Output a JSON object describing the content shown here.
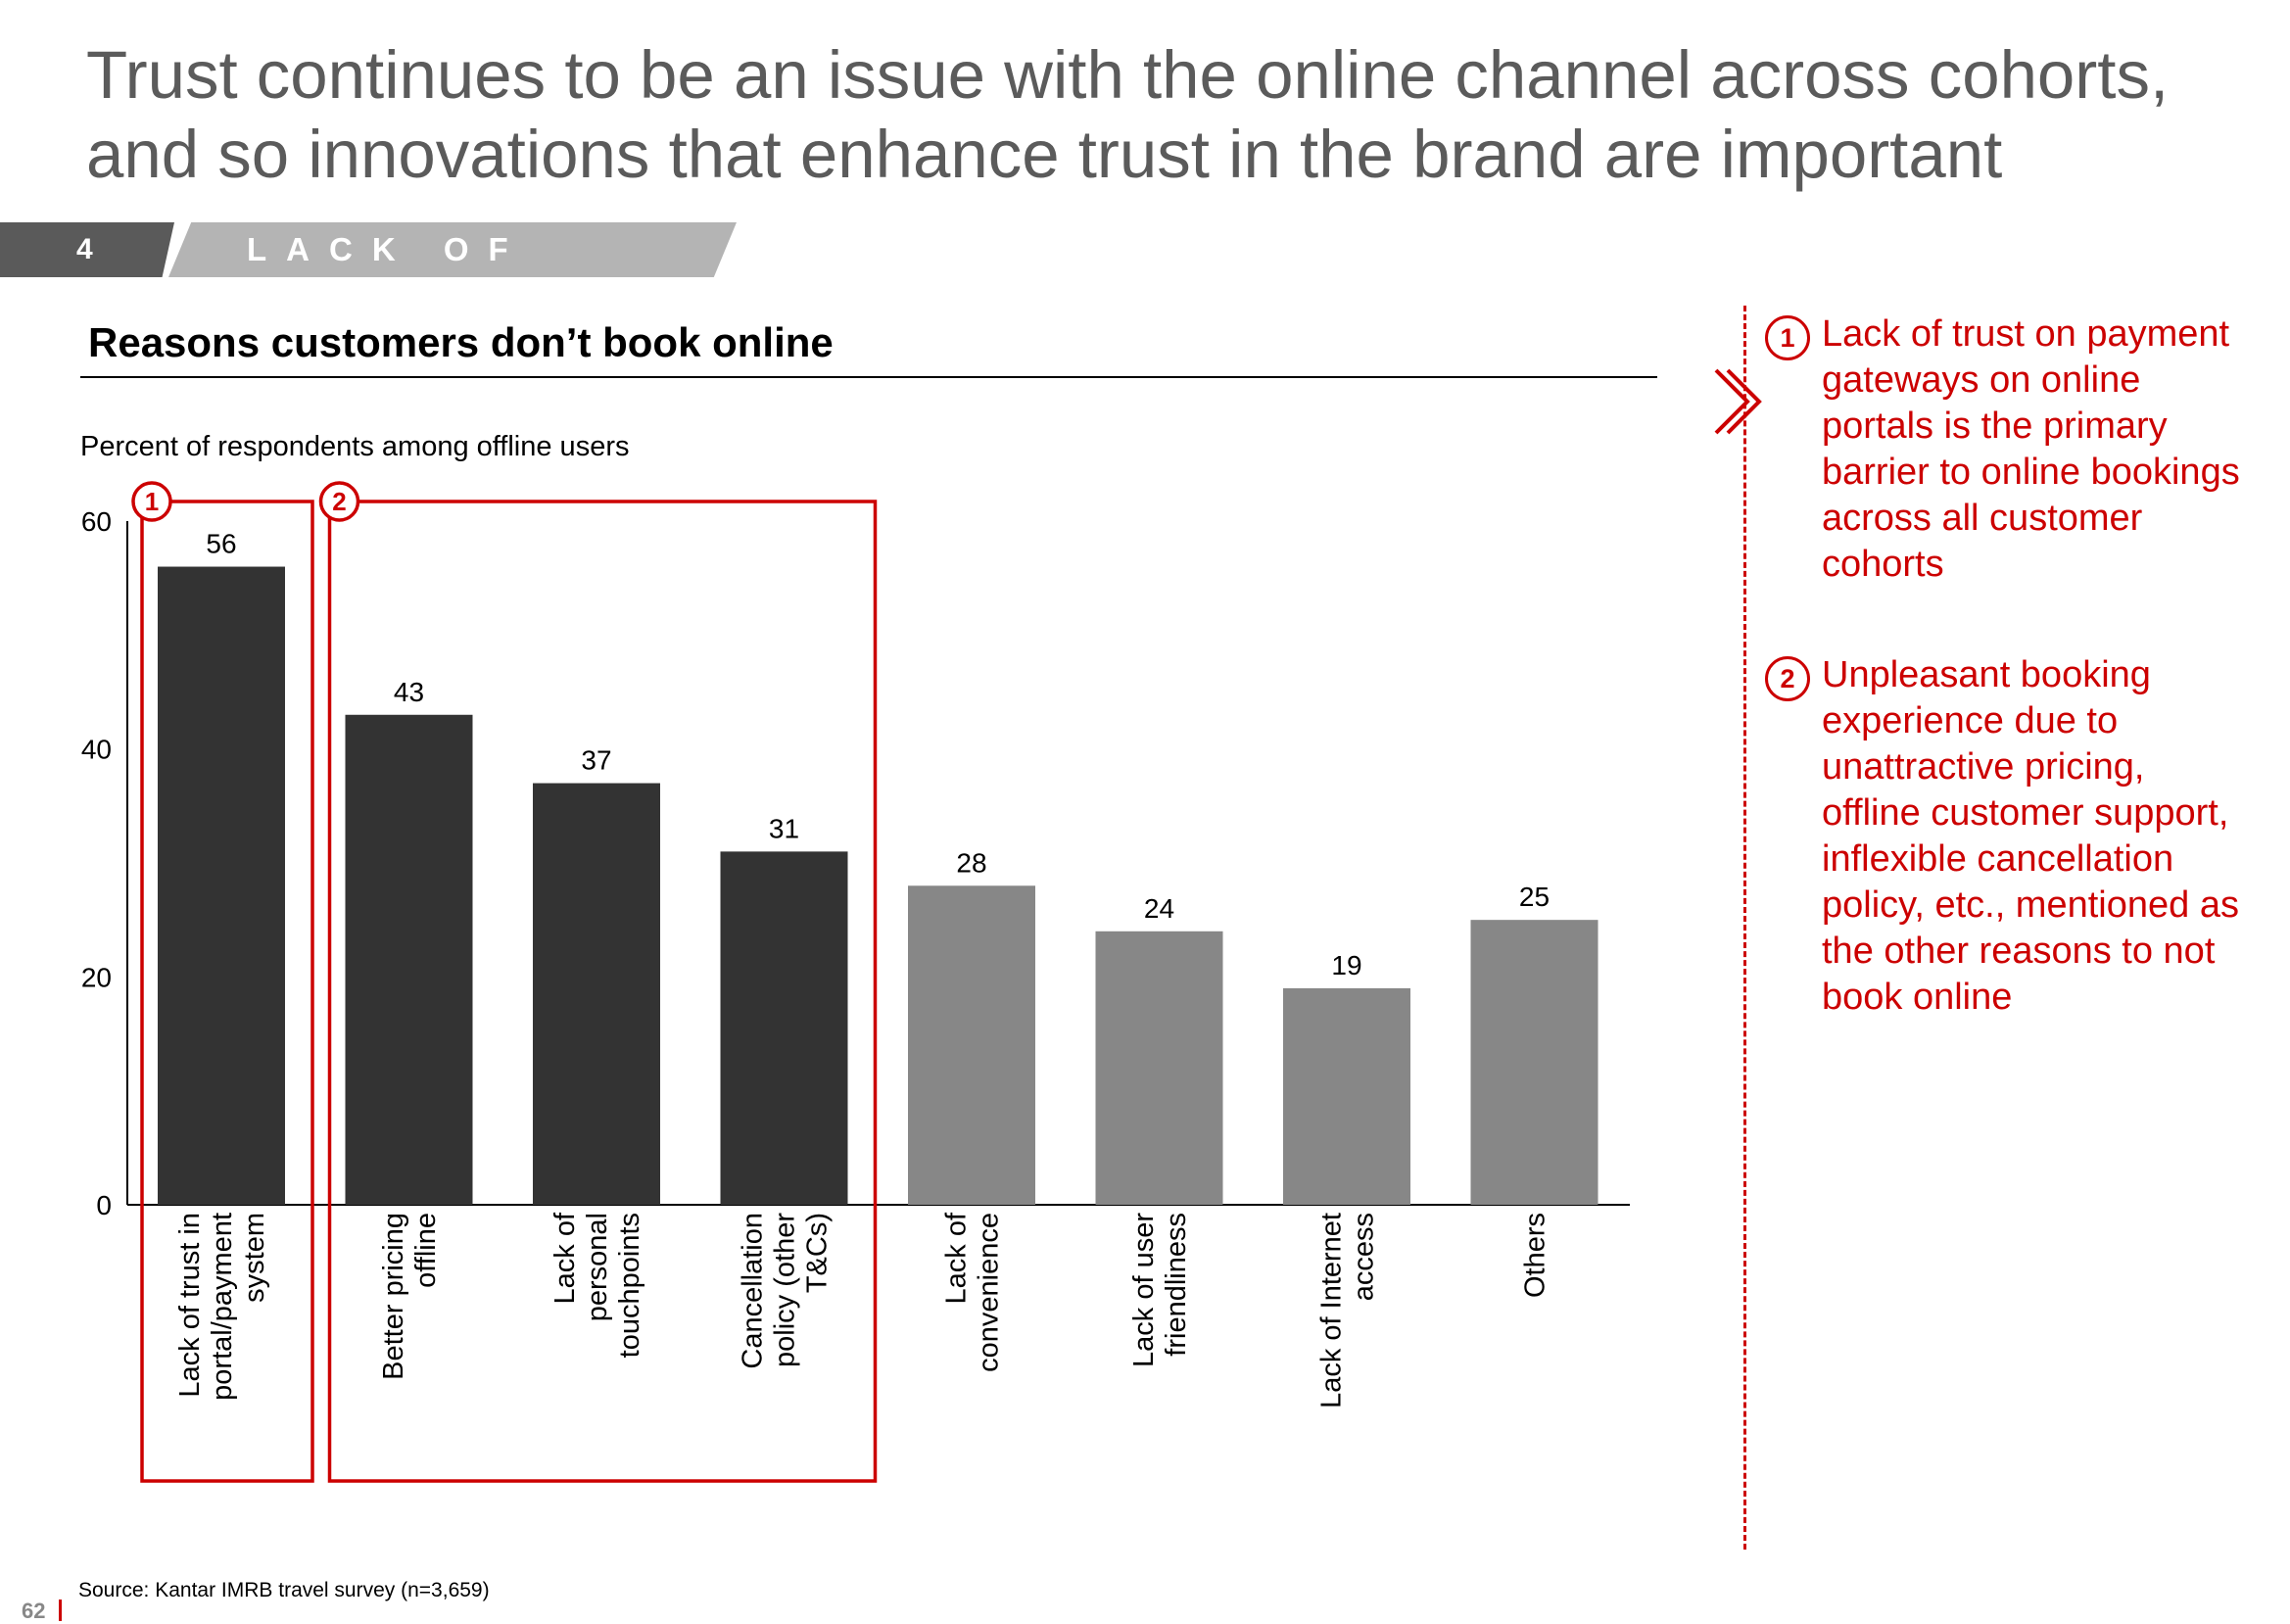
{
  "header": {
    "title": "Trust continues to be an issue with the online channel across cohorts, and so innovations that enhance trust in the brand are important",
    "section_number": "4",
    "section_label": "LACK OF TRUST"
  },
  "chart_data": {
    "type": "bar",
    "title": "Reasons customers don’t book online",
    "ylabel": "Percent of respondents among offline users",
    "xlabel": "",
    "ylim": [
      0,
      60
    ],
    "yticks": [
      0,
      20,
      40,
      60
    ],
    "categories": [
      "Lack of trust in portal/payment system",
      "Better pricing offline",
      "Lack of personal touchpoints",
      "Cancellation policy (other T&Cs)",
      "Lack of convenience",
      "Lack of user friendliness",
      "Lack of Internet access",
      "Others"
    ],
    "category_lines": [
      [
        "Lack of trust in",
        "portal/payment",
        "system"
      ],
      [
        "Better pricing",
        "offline"
      ],
      [
        "Lack of",
        "personal",
        "touchpoints"
      ],
      [
        "Cancellation",
        "policy (other",
        "T&Cs)"
      ],
      [
        "Lack of",
        "convenience"
      ],
      [
        "Lack of user",
        "friendliness"
      ],
      [
        "Lack of Internet",
        "access"
      ],
      [
        "Others"
      ]
    ],
    "values": [
      56,
      43,
      37,
      31,
      28,
      24,
      19,
      25
    ],
    "highlight_groups": [
      {
        "badge": "1",
        "categories": [
          "Lack of trust in portal/payment system"
        ]
      },
      {
        "badge": "2",
        "categories": [
          "Better pricing offline",
          "Lack of personal touchpoints",
          "Cancellation policy (other T&Cs)"
        ]
      }
    ],
    "colors": {
      "highlighted": "#333333",
      "other": "#878787",
      "accent": "#cc0000"
    },
    "grid": false,
    "legend": "none"
  },
  "notes": [
    {
      "badge": "1",
      "text": "Lack of trust on payment gateways on online portals is the primary barrier to online bookings across all customer cohorts"
    },
    {
      "badge": "2",
      "text": "Unpleasant booking experience due to unattractive pricing, offline customer support, inflexible cancellation policy, etc., mentioned as the other reasons to not book online"
    }
  ],
  "footer": {
    "source": "Source: Kantar IMRB travel survey (n=3,659)",
    "page_number": "62"
  },
  "icons": {
    "chevron": "double-chevron-right-icon"
  }
}
